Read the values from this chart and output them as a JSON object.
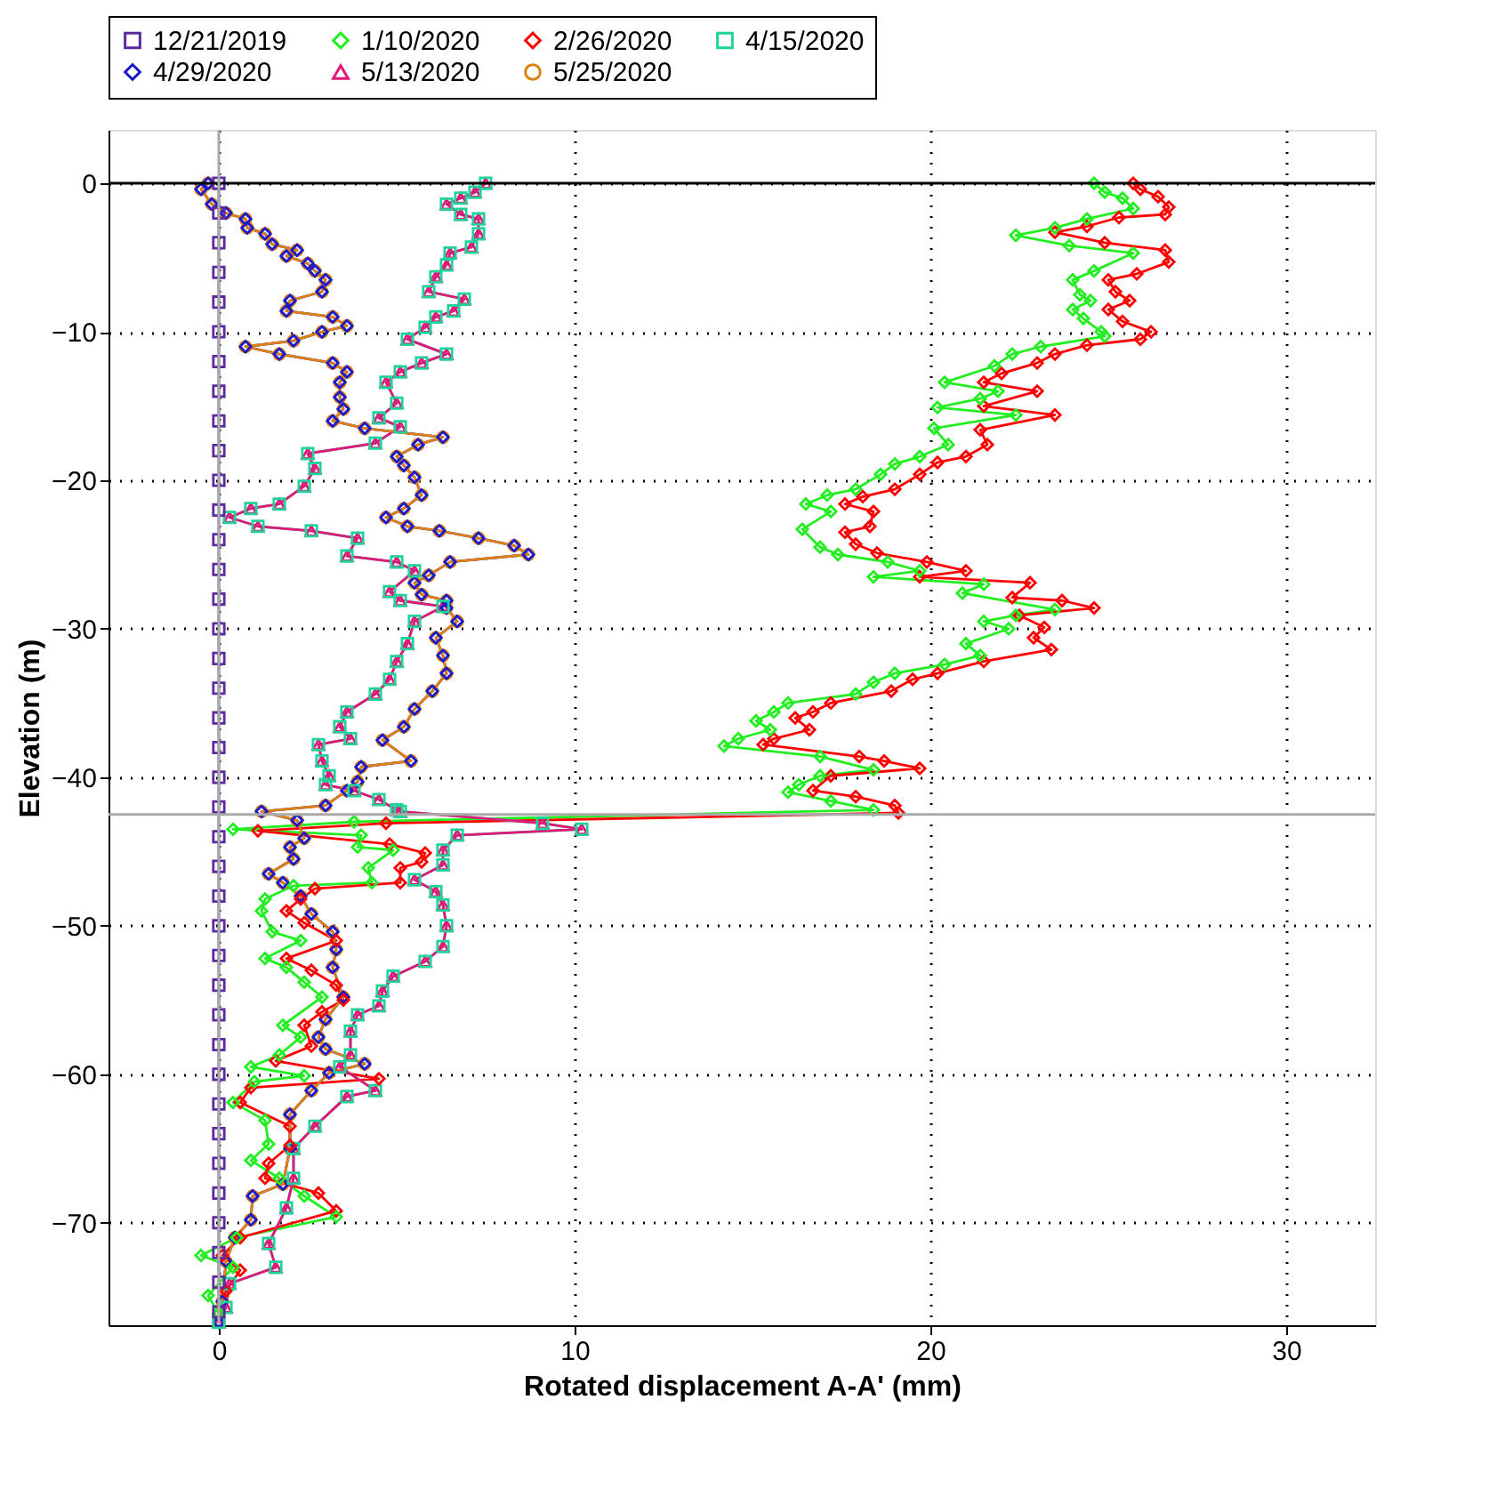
{
  "chart_data": {
    "type": "line",
    "xlabel": "Rotated displacement A-A' (mm)",
    "ylabel": "Elevation (m)",
    "xlim": [
      -3.1,
      32.5
    ],
    "xticks": [
      0,
      10,
      20,
      30
    ],
    "ylim": [
      -76.9,
      3.6
    ],
    "yticks": [
      0,
      -10,
      -20,
      -30,
      -40,
      -50,
      -60,
      -70
    ],
    "grid": true,
    "legend": "top",
    "line_style": "solid",
    "ref_lines": [
      {
        "axis": "y",
        "value": 0,
        "color": "#000000"
      },
      {
        "axis": "y",
        "value": -42.5,
        "color": "#aaaaaa"
      },
      {
        "axis": "x",
        "value": 0,
        "color": "#aaaaaa"
      }
    ],
    "series": [
      {
        "name": "12/21/2019",
        "color": "#5c2a9d",
        "marker": "square",
        "x": [
          0,
          0,
          0,
          0,
          0,
          0,
          0,
          0,
          0,
          0,
          0,
          0,
          0,
          0,
          0,
          0,
          0,
          0,
          0,
          0,
          0,
          0,
          0,
          0,
          0,
          0,
          0,
          0,
          0,
          0,
          0,
          0,
          0,
          0,
          0,
          0,
          0,
          0,
          0
        ],
        "values": [
          0,
          -2,
          -4,
          -6,
          -8,
          -10,
          -12,
          -14,
          -16,
          -18,
          -20,
          -22,
          -24,
          -26,
          -28,
          -30,
          -32,
          -34,
          -36,
          -38,
          -40,
          -42,
          -44,
          -46,
          -48,
          -50,
          -52,
          -54,
          -56,
          -58,
          -60,
          -62,
          -64,
          -66,
          -68,
          -70,
          -72,
          -74,
          -76
        ]
      },
      {
        "name": "1/10/2020",
        "color": "#22ee22",
        "marker": "diamond",
        "x": [
          24.6,
          24.9,
          25.4,
          25.7,
          24.4,
          23.5,
          22.4,
          23.9,
          25.7,
          24.6,
          24.0,
          24.2,
          24.5,
          24.0,
          24.3,
          24.8,
          24.9,
          23.1,
          22.3,
          21.8,
          20.4,
          21.9,
          21.4,
          20.2,
          22.4,
          20.1,
          20.5,
          19.7,
          19.0,
          18.6,
          17.9,
          17.1,
          16.5,
          17.2,
          16.4,
          16.9,
          17.4,
          18.8,
          19.7,
          18.4,
          21.5,
          20.9,
          23.5,
          22.4,
          21.5,
          22.2,
          21.0,
          21.4,
          20.4,
          19.0,
          18.4,
          17.9,
          16.0,
          15.6,
          15.1,
          15.5,
          14.6,
          14.2,
          16.9,
          18.4,
          16.9,
          16.3,
          16.0,
          17.2,
          18.4,
          3.8,
          0.4,
          4.0,
          3.9,
          4.9,
          4.2,
          4.3,
          2.1,
          1.3,
          1.2,
          1.5,
          2.3,
          1.3,
          1.9,
          2.4,
          2.9,
          1.8,
          2.3,
          1.7,
          0.9,
          2.4,
          1.0,
          0.4,
          1.3,
          1.4,
          0.9,
          1.7,
          2.4,
          3.3,
          0.5,
          -0.5,
          0.4,
          -0.3,
          0.0
        ],
        "values": [
          0,
          -0.6,
          -1.0,
          -1.7,
          -2.4,
          -3.0,
          -3.5,
          -4.2,
          -4.7,
          -5.9,
          -6.5,
          -7.5,
          -7.9,
          -8.5,
          -9.1,
          -10.0,
          -10.3,
          -11.0,
          -11.5,
          -12.3,
          -13.4,
          -14.0,
          -14.5,
          -15.1,
          -15.6,
          -16.5,
          -17.6,
          -18.4,
          -18.9,
          -19.6,
          -20.6,
          -21.0,
          -21.6,
          -22.1,
          -23.3,
          -24.5,
          -25.0,
          -25.5,
          -26.1,
          -26.5,
          -27.0,
          -27.6,
          -28.7,
          -29.1,
          -29.5,
          -30.0,
          -31.0,
          -31.8,
          -32.4,
          -33.0,
          -33.6,
          -34.4,
          -35.0,
          -35.6,
          -36.2,
          -36.8,
          -37.4,
          -37.9,
          -38.6,
          -39.5,
          -39.9,
          -40.5,
          -41.0,
          -41.6,
          -42.2,
          -43.0,
          -43.5,
          -43.9,
          -44.7,
          -44.9,
          -46.1,
          -47.1,
          -47.3,
          -48.2,
          -49.0,
          -50.4,
          -51.0,
          -52.2,
          -52.8,
          -53.8,
          -54.8,
          -56.7,
          -57.5,
          -58.7,
          -59.5,
          -60.1,
          -60.5,
          -61.9,
          -63.1,
          -64.7,
          -65.8,
          -67.0,
          -68.2,
          -69.6,
          -71.0,
          -72.2,
          -73.0,
          -74.9,
          -76.1
        ]
      },
      {
        "name": "2/26/2020",
        "color": "#ff0000",
        "marker": "diamond",
        "x": [
          25.7,
          25.9,
          26.4,
          26.7,
          26.6,
          25.3,
          24.4,
          23.5,
          24.9,
          26.6,
          26.7,
          25.8,
          25.0,
          25.2,
          25.6,
          25.0,
          25.4,
          26.2,
          25.9,
          24.4,
          23.5,
          23.0,
          22.0,
          21.5,
          23.0,
          21.5,
          23.5,
          21.4,
          21.6,
          21.0,
          20.2,
          19.7,
          19.0,
          18.1,
          17.6,
          18.4,
          18.3,
          17.6,
          17.9,
          18.5,
          19.9,
          21.0,
          19.7,
          22.8,
          22.3,
          23.7,
          24.6,
          22.5,
          23.2,
          22.9,
          23.4,
          21.5,
          20.2,
          19.5,
          18.9,
          17.2,
          16.7,
          16.2,
          16.6,
          15.6,
          15.3,
          18.0,
          18.7,
          19.7,
          17.2,
          16.7,
          17.9,
          19.0,
          19.1,
          4.7,
          1.1,
          4.8,
          5.8,
          5.7,
          5.1,
          5.1,
          2.7,
          2.3,
          1.9,
          2.4,
          3.3,
          1.9,
          2.6,
          3.3,
          3.5,
          2.9,
          2.4,
          2.6,
          1.6,
          4.5,
          0.9,
          0.6,
          2.0,
          2.0,
          1.4,
          1.3,
          2.8,
          3.3,
          0.6,
          0.1,
          0.6,
          0.2,
          0.0
        ],
        "values": [
          0,
          -0.4,
          -0.9,
          -1.6,
          -2.1,
          -2.3,
          -2.9,
          -3.3,
          -4.0,
          -4.5,
          -5.3,
          -6.1,
          -6.5,
          -7.3,
          -7.9,
          -8.5,
          -9.3,
          -10.0,
          -10.5,
          -10.9,
          -11.5,
          -12.1,
          -12.8,
          -13.4,
          -14.0,
          -15.0,
          -15.6,
          -16.6,
          -17.6,
          -18.4,
          -18.8,
          -19.6,
          -20.6,
          -21.1,
          -21.6,
          -22.1,
          -23.1,
          -23.5,
          -24.3,
          -24.9,
          -25.5,
          -26.1,
          -26.5,
          -26.9,
          -27.9,
          -28.1,
          -28.6,
          -29.1,
          -29.9,
          -30.6,
          -31.4,
          -32.2,
          -33.0,
          -33.4,
          -34.2,
          -35.0,
          -35.6,
          -36.0,
          -36.8,
          -37.4,
          -37.8,
          -38.6,
          -38.9,
          -39.4,
          -39.9,
          -40.9,
          -41.3,
          -41.9,
          -42.4,
          -43.1,
          -43.6,
          -44.5,
          -45.1,
          -45.7,
          -46.1,
          -47.1,
          -47.5,
          -48.2,
          -49.0,
          -49.8,
          -51.0,
          -52.2,
          -53.0,
          -54.0,
          -55.0,
          -55.8,
          -56.7,
          -58.1,
          -59.1,
          -60.3,
          -60.9,
          -61.9,
          -63.5,
          -64.8,
          -66.0,
          -67.0,
          -68.0,
          -69.2,
          -71.0,
          -72.2,
          -73.2,
          -74.6,
          -76.1
        ]
      },
      {
        "name": "4/15/2020",
        "color": "#1fd39a",
        "marker": "square",
        "x": [
          7.5,
          7.2,
          6.8,
          6.4,
          6.8,
          7.3,
          7.3,
          7.1,
          6.5,
          6.4,
          6.1,
          5.9,
          6.9,
          6.6,
          6.1,
          5.8,
          5.3,
          6.4,
          5.7,
          5.1,
          4.7,
          5.0,
          4.5,
          5.1,
          4.4,
          2.5,
          2.7,
          2.4,
          1.7,
          0.9,
          0.3,
          1.1,
          2.6,
          3.9,
          3.6,
          5.0,
          5.5,
          4.8,
          5.1,
          6.3,
          5.5,
          5.3,
          5.0,
          4.8,
          4.4,
          3.6,
          3.4,
          3.7,
          2.8,
          2.9,
          3.1,
          3.0,
          3.8,
          4.5,
          5.0,
          5.1,
          9.1,
          10.2,
          6.7,
          6.3,
          6.3,
          5.5,
          6.1,
          6.3,
          6.4,
          6.3,
          5.8,
          4.9,
          4.6,
          4.5,
          3.9,
          3.7,
          3.7,
          3.4,
          4.4,
          3.6,
          2.7,
          2.1,
          2.1,
          1.9,
          1.4,
          1.6,
          0.3,
          0.2,
          0.0
        ],
        "values": [
          0,
          -0.6,
          -1.0,
          -1.4,
          -2.1,
          -2.4,
          -3.4,
          -4.3,
          -4.7,
          -5.5,
          -6.3,
          -7.3,
          -7.8,
          -8.6,
          -9.0,
          -9.7,
          -10.5,
          -11.5,
          -12.1,
          -12.7,
          -13.4,
          -14.8,
          -15.8,
          -16.4,
          -17.5,
          -18.2,
          -19.2,
          -20.4,
          -21.6,
          -21.9,
          -22.5,
          -23.1,
          -23.4,
          -23.9,
          -25.1,
          -25.5,
          -26.1,
          -27.5,
          -28.1,
          -28.5,
          -29.5,
          -31.0,
          -32.2,
          -33.4,
          -34.4,
          -35.6,
          -36.6,
          -37.4,
          -37.8,
          -38.9,
          -39.9,
          -40.5,
          -40.9,
          -41.5,
          -42.2,
          -42.3,
          -43.1,
          -43.5,
          -43.9,
          -44.9,
          -45.9,
          -46.9,
          -47.7,
          -48.6,
          -50.0,
          -51.4,
          -52.4,
          -53.4,
          -54.4,
          -55.4,
          -56.0,
          -57.1,
          -58.7,
          -59.5,
          -61.1,
          -61.5,
          -63.5,
          -65.0,
          -67.0,
          -69.0,
          -71.4,
          -73.0,
          -74.1,
          -75.7,
          -76.7
        ]
      },
      {
        "name": "4/29/2020",
        "color": "#1a1acc",
        "marker": "diamond",
        "x": [
          -0.3,
          -0.5,
          -0.2,
          0.2,
          0.75,
          0.8,
          1.3,
          1.5,
          2.2,
          1.9,
          2.5,
          2.7,
          3.0,
          2.9,
          2.0,
          1.9,
          3.2,
          3.6,
          2.9,
          2.1,
          0.75,
          1.7,
          3.2,
          3.6,
          3.4,
          3.4,
          3.5,
          3.2,
          4.1,
          6.3,
          5.6,
          5.0,
          5.2,
          5.5,
          5.7,
          5.2,
          4.7,
          5.3,
          6.2,
          7.3,
          8.3,
          8.7,
          6.5,
          5.9,
          5.5,
          5.7,
          6.4,
          6.4,
          6.7,
          6.1,
          6.3,
          6.4,
          6.0,
          5.5,
          5.2,
          4.6,
          5.4,
          4.0,
          3.9,
          3.6,
          3.0,
          1.2,
          2.2,
          2.4,
          2.0,
          2.1,
          1.4,
          1.8,
          2.3,
          2.6,
          3.2,
          3.3,
          3.2,
          3.5,
          3.0,
          2.8,
          3.0,
          4.1,
          3.1,
          2.6,
          2.0,
          2.0,
          1.8,
          0.95,
          0.9,
          0.45,
          0.2,
          0.1,
          0.0
        ],
        "values": [
          0,
          -0.4,
          -1.4,
          -2.0,
          -2.4,
          -3.0,
          -3.4,
          -4.1,
          -4.5,
          -4.9,
          -5.4,
          -5.9,
          -6.5,
          -7.3,
          -7.9,
          -8.6,
          -9.0,
          -9.6,
          -10.0,
          -10.6,
          -11.0,
          -11.5,
          -12.1,
          -12.7,
          -13.4,
          -14.4,
          -15.2,
          -16.0,
          -16.5,
          -17.1,
          -17.6,
          -18.4,
          -19.0,
          -19.8,
          -21.0,
          -21.9,
          -22.5,
          -23.1,
          -23.4,
          -23.9,
          -24.4,
          -25.0,
          -25.5,
          -26.4,
          -26.9,
          -27.7,
          -28.1,
          -28.6,
          -29.5,
          -30.6,
          -31.8,
          -33.0,
          -34.2,
          -35.4,
          -36.6,
          -37.5,
          -38.9,
          -39.3,
          -40.3,
          -40.9,
          -41.9,
          -42.3,
          -42.9,
          -44.1,
          -44.7,
          -45.5,
          -46.5,
          -47.1,
          -48.0,
          -49.2,
          -50.4,
          -51.6,
          -52.8,
          -54.8,
          -56.3,
          -57.5,
          -58.3,
          -59.3,
          -59.9,
          -61.1,
          -62.7,
          -65.0,
          -67.4,
          -68.2,
          -69.8,
          -71.0,
          -72.6,
          -75.3,
          -76.7
        ]
      },
      {
        "name": "5/13/2020",
        "color": "#e0187a",
        "marker": "triangle",
        "x": [
          7.5,
          7.2,
          6.8,
          6.4,
          6.8,
          7.3,
          7.3,
          7.1,
          6.5,
          6.4,
          6.1,
          5.9,
          6.9,
          6.6,
          6.1,
          5.8,
          5.3,
          6.4,
          5.7,
          5.1,
          4.7,
          5.0,
          4.5,
          5.1,
          4.4,
          2.5,
          2.7,
          2.4,
          1.7,
          0.9,
          0.3,
          1.1,
          2.6,
          3.9,
          3.6,
          5.0,
          5.5,
          4.8,
          5.1,
          6.3,
          5.5,
          5.3,
          5.0,
          4.8,
          4.4,
          3.6,
          3.4,
          3.7,
          2.8,
          2.9,
          3.1,
          3.0,
          3.8,
          4.5,
          5.0,
          5.1,
          9.1,
          10.2,
          6.7,
          6.3,
          6.3,
          5.5,
          6.1,
          6.3,
          6.4,
          6.3,
          5.8,
          4.9,
          4.6,
          4.5,
          3.9,
          3.7,
          3.7,
          3.4,
          4.4,
          3.6,
          2.7,
          2.1,
          2.1,
          1.9,
          1.4,
          1.6,
          0.3,
          0.2,
          0.0
        ],
        "values": [
          0,
          -0.6,
          -1.0,
          -1.4,
          -2.1,
          -2.4,
          -3.4,
          -4.3,
          -4.7,
          -5.5,
          -6.3,
          -7.3,
          -7.8,
          -8.6,
          -9.0,
          -9.7,
          -10.5,
          -11.5,
          -12.1,
          -12.7,
          -13.4,
          -14.8,
          -15.8,
          -16.4,
          -17.5,
          -18.2,
          -19.2,
          -20.4,
          -21.6,
          -21.9,
          -22.5,
          -23.1,
          -23.4,
          -23.9,
          -25.1,
          -25.5,
          -26.1,
          -27.5,
          -28.1,
          -28.5,
          -29.5,
          -31.0,
          -32.2,
          -33.4,
          -34.4,
          -35.6,
          -36.6,
          -37.4,
          -37.8,
          -38.9,
          -39.9,
          -40.5,
          -40.9,
          -41.5,
          -42.2,
          -42.3,
          -43.1,
          -43.5,
          -43.9,
          -44.9,
          -45.9,
          -46.9,
          -47.7,
          -48.6,
          -50.0,
          -51.4,
          -52.4,
          -53.4,
          -54.4,
          -55.4,
          -56.0,
          -57.1,
          -58.7,
          -59.5,
          -61.1,
          -61.5,
          -63.5,
          -65.0,
          -67.0,
          -69.0,
          -71.4,
          -73.0,
          -74.1,
          -75.7,
          -76.7
        ]
      },
      {
        "name": "5/25/2020",
        "color": "#e08010",
        "marker": "circle",
        "x": [
          -0.3,
          -0.5,
          -0.2,
          0.2,
          0.75,
          0.8,
          1.3,
          1.5,
          2.2,
          1.9,
          2.5,
          2.7,
          3.0,
          2.9,
          2.0,
          1.9,
          3.2,
          3.6,
          2.9,
          2.1,
          0.75,
          1.7,
          3.2,
          3.6,
          3.4,
          3.4,
          3.5,
          3.2,
          4.1,
          6.3,
          5.6,
          5.0,
          5.2,
          5.5,
          5.7,
          5.2,
          4.7,
          5.3,
          6.2,
          7.3,
          8.3,
          8.7,
          6.5,
          5.9,
          5.5,
          5.7,
          6.4,
          6.4,
          6.7,
          6.1,
          6.3,
          6.4,
          6.0,
          5.5,
          5.2,
          4.6,
          5.4,
          4.0,
          3.9,
          3.6,
          3.0,
          1.2,
          2.2,
          2.4,
          2.0,
          2.1,
          1.4,
          1.8,
          2.3,
          2.6,
          3.2,
          3.3,
          3.2,
          3.5,
          3.0,
          2.8,
          3.0,
          4.1,
          3.1,
          2.6,
          2.0,
          2.0,
          1.8,
          0.95,
          0.9,
          0.45,
          0.2,
          0.1,
          0.0
        ],
        "values": [
          0,
          -0.4,
          -1.4,
          -2.0,
          -2.4,
          -3.0,
          -3.4,
          -4.1,
          -4.5,
          -4.9,
          -5.4,
          -5.9,
          -6.5,
          -7.3,
          -7.9,
          -8.6,
          -9.0,
          -9.6,
          -10.0,
          -10.6,
          -11.0,
          -11.5,
          -12.1,
          -12.7,
          -13.4,
          -14.4,
          -15.2,
          -16.0,
          -16.5,
          -17.1,
          -17.6,
          -18.4,
          -19.0,
          -19.8,
          -21.0,
          -21.9,
          -22.5,
          -23.1,
          -23.4,
          -23.9,
          -24.4,
          -25.0,
          -25.5,
          -26.4,
          -26.9,
          -27.7,
          -28.1,
          -28.6,
          -29.5,
          -30.6,
          -31.8,
          -33.0,
          -34.2,
          -35.4,
          -36.6,
          -37.5,
          -38.9,
          -39.3,
          -40.3,
          -40.9,
          -41.9,
          -42.3,
          -42.9,
          -44.1,
          -44.7,
          -45.5,
          -46.5,
          -47.1,
          -48.0,
          -49.2,
          -50.4,
          -51.6,
          -52.8,
          -54.8,
          -56.3,
          -57.5,
          -58.3,
          -59.3,
          -59.9,
          -61.1,
          -62.7,
          -65.0,
          -67.4,
          -68.2,
          -69.8,
          -71.0,
          -72.6,
          -75.3,
          -76.7
        ]
      }
    ]
  }
}
